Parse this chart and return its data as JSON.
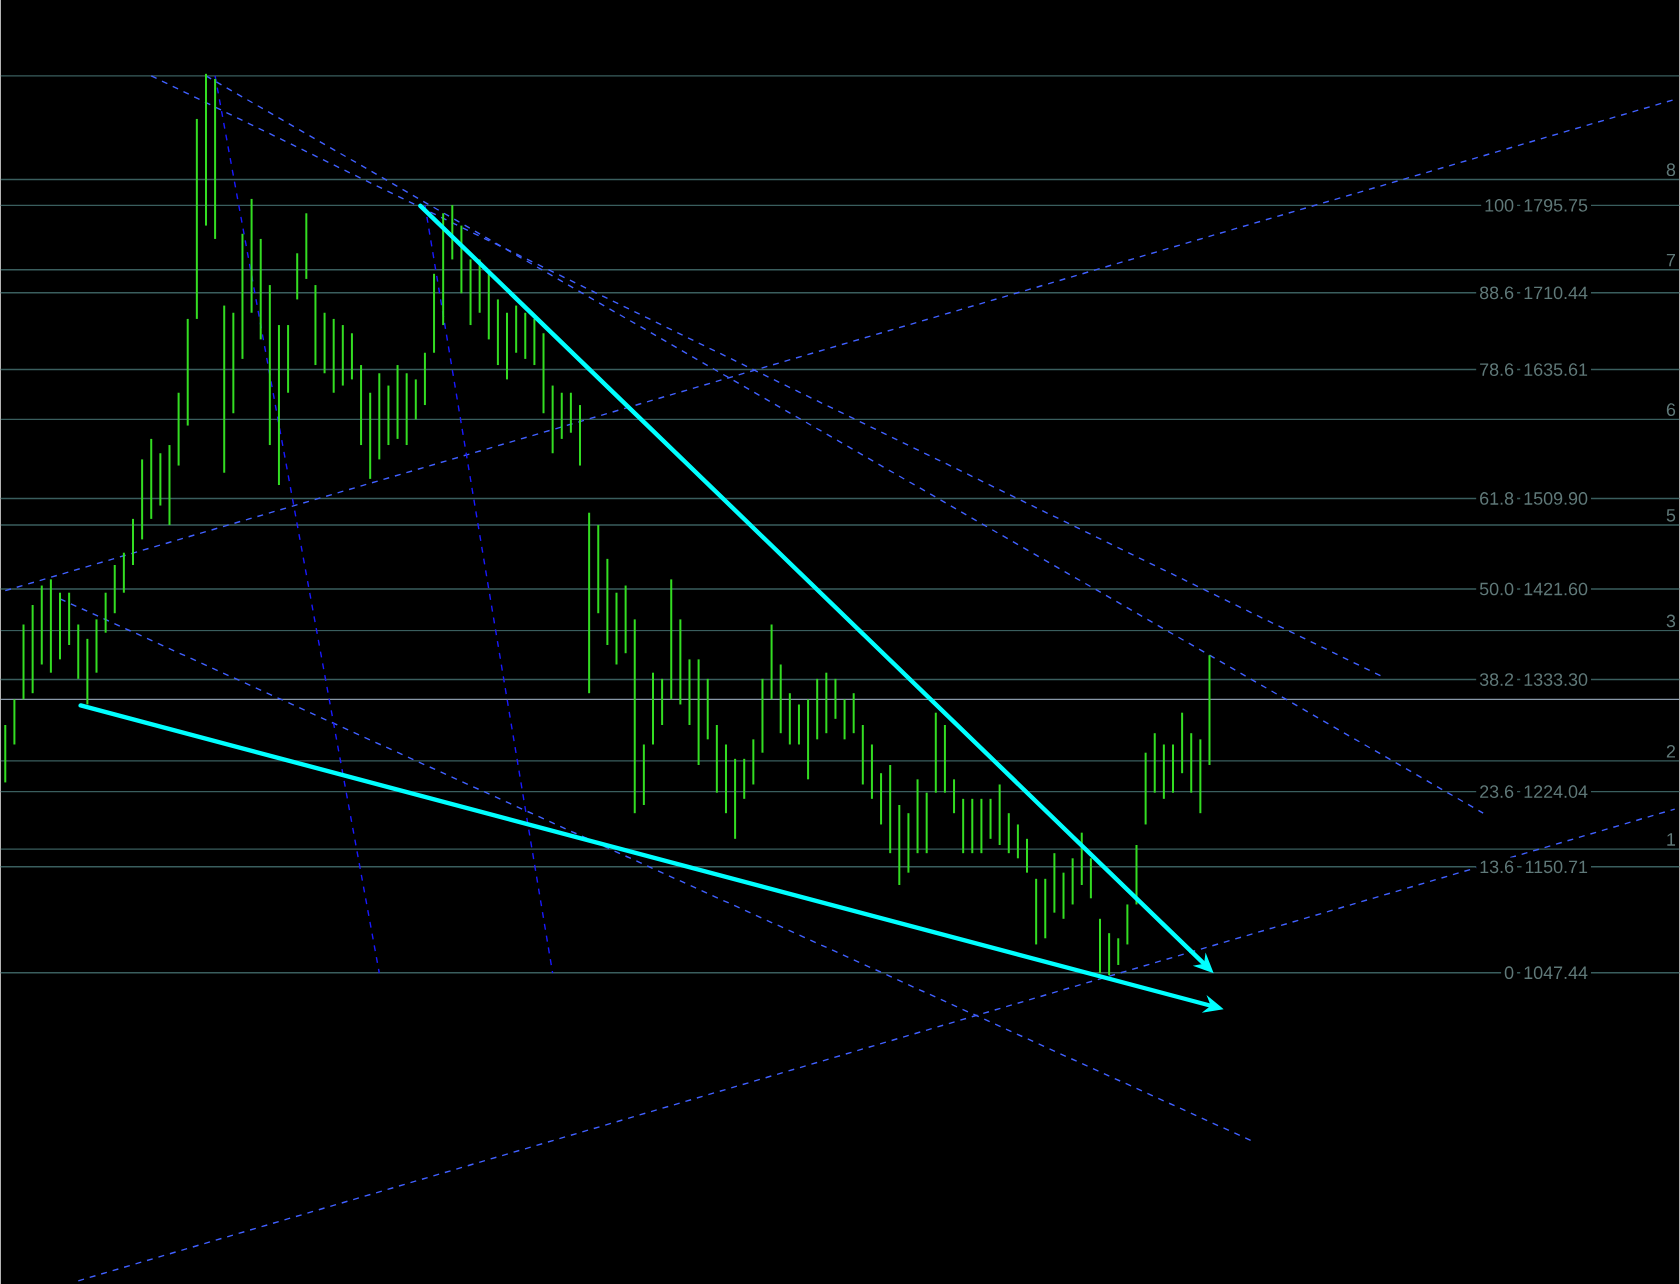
{
  "chart_data": {
    "type": "bar",
    "categories": [
      null,
      null,
      null,
      null,
      null,
      null,
      null,
      null,
      null,
      null,
      null,
      null,
      null,
      null,
      null,
      null,
      null,
      null,
      null,
      null,
      null,
      null,
      null,
      null,
      null,
      null,
      null,
      null,
      null,
      null,
      null,
      null,
      null,
      null,
      null,
      null,
      null,
      null,
      null,
      null,
      null,
      null,
      null,
      null,
      null,
      null,
      null,
      null,
      null,
      null,
      null,
      null,
      null,
      null,
      null,
      null,
      null,
      null,
      null,
      null,
      null,
      null,
      null,
      null,
      null,
      null,
      null,
      null,
      null,
      null,
      null,
      null,
      null,
      null,
      null,
      null,
      null,
      null,
      null,
      null,
      null,
      null,
      null,
      null,
      null,
      null,
      null,
      null,
      null,
      null,
      null,
      null,
      null,
      null,
      null,
      null,
      null,
      null,
      null,
      null,
      null,
      null,
      null,
      null,
      null,
      null,
      null,
      null,
      null,
      null,
      null,
      null,
      null,
      null,
      null,
      null,
      null,
      null,
      null,
      null,
      null,
      null,
      null,
      null,
      null,
      null,
      null,
      null,
      null,
      null,
      null,
      null,
      null,
      null,
      null,
      null,
      null,
      null,
      null,
      null,
      null,
      null,
      null,
      null,
      null,
      null,
      null,
      null,
      null,
      null,
      null,
      null,
      null,
      null,
      null,
      null,
      null,
      null,
      null,
      null,
      null,
      null,
      null,
      null,
      null,
      null,
      null,
      null,
      null,
      null,
      null,
      null,
      null,
      null,
      null,
      null,
      null,
      null,
      null,
      null,
      null,
      null,
      null,
      null
    ],
    "color": "#33dd22",
    "base": [
      1233,
      1270,
      1314,
      1320,
      1348,
      1340,
      1353,
      1367,
      1334,
      1309,
      1340,
      1379,
      1398,
      1418,
      1445,
      1470,
      1490,
      1503,
      1484,
      1542,
      1581,
      1685,
      1776,
      1763,
      1535,
      1593,
      1646,
      1691,
      1665,
      1562,
      1523,
      1613,
      1704,
      1724,
      1640,
      1632,
      1613,
      1620,
      1626,
      1562,
      1529,
      1548,
      1562,
      1568,
      1562,
      1587,
      1601,
      1652,
      1679,
      1743,
      1710,
      1679,
      1691,
      1665,
      1640,
      1626,
      1652,
      1646,
      1640,
      1593,
      1554,
      1568,
      1574,
      1542,
      1320,
      1398,
      1367,
      1348,
      1359,
      1203,
      1211,
      1270,
      1289,
      1314,
      1309,
      1289,
      1250,
      1275,
      1223,
      1203,
      1178,
      1217,
      1231,
      1262,
      1314,
      1281,
      1270,
      1270,
      1236,
      1275,
      1281,
      1295,
      1275,
      1281,
      1231,
      1217,
      1192,
      1164,
      1133,
      1145,
      1164,
      1164,
      1223,
      1223,
      1203,
      1164,
      1164,
      1164,
      1178,
      1172,
      1164,
      1159,
      1145,
      1075,
      1081,
      1106,
      1100,
      1114,
      1133,
      1120,
      1047,
      1045,
      1055,
      1075,
      1114,
      1192,
      1223,
      1217,
      1223,
      1242,
      1223,
      1203,
      1250,
      null,
      null,
      null,
      null,
      null,
      null,
      null,
      null,
      null,
      null,
      null,
      null,
      null,
      null,
      null,
      null,
      null,
      null,
      null,
      null,
      null,
      null,
      null,
      null,
      null,
      null,
      null,
      null,
      null,
      null,
      null,
      null,
      null,
      null,
      null,
      null,
      null,
      null,
      null,
      null,
      null,
      null,
      null,
      null,
      null,
      null,
      null,
      null,
      null,
      null,
      null
    ],
    "values": [
      56,
      44,
      73,
      86,
      77,
      91,
      65,
      51,
      53,
      64,
      52,
      39,
      47,
      39,
      45,
      78,
      78,
      51,
      78,
      71,
      104,
      195,
      148,
      156,
      163,
      98,
      122,
      111,
      98,
      156,
      156,
      66,
      45,
      64,
      78,
      59,
      72,
      59,
      45,
      78,
      84,
      84,
      58,
      72,
      70,
      39,
      51,
      77,
      109,
      53,
      66,
      64,
      52,
      64,
      64,
      65,
      46,
      45,
      45,
      78,
      66,
      45,
      39,
      59,
      176,
      86,
      84,
      70,
      66,
      189,
      59,
      70,
      45,
      117,
      83,
      64,
      103,
      59,
      66,
      67,
      78,
      39,
      44,
      72,
      73,
      67,
      50,
      39,
      78,
      59,
      59,
      39,
      39,
      39,
      58,
      53,
      50,
      86,
      78,
      58,
      72,
      59,
      78,
      66,
      33,
      53,
      53,
      53,
      39,
      59,
      39,
      33,
      33,
      64,
      58,
      58,
      45,
      45,
      51,
      39,
      53,
      41,
      26,
      39,
      58,
      70,
      58,
      53,
      47,
      59,
      58,
      72,
      107,
      null,
      null,
      null,
      null,
      null,
      null,
      null,
      null,
      null,
      null,
      null,
      null,
      null,
      null,
      null,
      null,
      null,
      null,
      null,
      null,
      null,
      null,
      null,
      null,
      null,
      null,
      null,
      null,
      null,
      null,
      null,
      null,
      null,
      null,
      null,
      null,
      null,
      null,
      null,
      null,
      null,
      null,
      null,
      null,
      null,
      null,
      null,
      null,
      null,
      null,
      null
    ],
    "series": [
      {
        "type": "line",
        "color": "#4060ff",
        "line_style": "dashed",
        "values": [
          null,
          null,
          null,
          null,
          null,
          null,
          null,
          null,
          null,
          null,
          null,
          null,
          null,
          null,
          null,
          null,
          1922,
          null,
          null,
          null,
          null,
          null,
          null,
          null,
          null,
          null,
          null,
          null,
          null,
          null,
          null,
          null,
          null,
          null,
          null,
          null,
          null,
          null,
          null,
          null,
          null,
          null,
          null,
          null,
          null,
          null,
          null,
          null,
          null,
          null,
          null,
          null,
          null,
          null,
          null,
          null,
          null,
          null,
          null,
          null,
          null,
          null,
          null,
          null,
          null,
          null,
          null,
          null,
          null,
          null,
          null,
          null,
          null,
          null,
          null,
          null,
          null,
          null,
          null,
          null,
          null,
          null,
          null,
          null,
          null,
          null,
          null,
          null,
          null,
          null,
          null,
          null,
          null,
          null,
          null,
          null,
          null,
          null,
          null,
          null,
          null,
          null,
          null,
          null,
          null,
          null,
          null,
          null,
          null,
          null,
          null,
          null,
          null,
          null,
          null,
          null,
          null,
          null,
          null,
          null,
          null,
          null,
          null,
          null,
          null,
          null,
          null,
          null,
          null,
          null,
          null,
          null,
          null,
          null,
          null,
          null,
          null,
          null,
          null,
          null,
          null,
          null,
          null,
          null,
          null,
          null,
          null,
          null,
          null,
          null,
          null,
          1336,
          null,
          null,
          null,
          null,
          null,
          null,
          null,
          null,
          null,
          null,
          null,
          null,
          null,
          null,
          null,
          null,
          null,
          null,
          null,
          null,
          null,
          null,
          null,
          null,
          null,
          null,
          null,
          null,
          null,
          null,
          null,
          null
        ]
      },
      {
        "type": "line",
        "color": "#4060ff",
        "line_style": "dashed",
        "values": [
          null,
          null,
          null,
          null,
          null,
          null,
          null,
          null,
          null,
          null,
          null,
          null,
          null,
          null,
          null,
          null,
          null,
          null,
          null,
          null,
          null,
          null,
          1922,
          null,
          null,
          null,
          null,
          null,
          null,
          null,
          null,
          null,
          null,
          null,
          null,
          null,
          null,
          null,
          null,
          null,
          null,
          null,
          null,
          null,
          null,
          null,
          null,
          null,
          null,
          null,
          null,
          null,
          null,
          null,
          null,
          null,
          null,
          null,
          null,
          null,
          null,
          null,
          null,
          null,
          null,
          null,
          null,
          null,
          null,
          null,
          null,
          null,
          null,
          null,
          null,
          null,
          null,
          null,
          null,
          null,
          null,
          null,
          null,
          null,
          null,
          null,
          null,
          null,
          null,
          null,
          null,
          null,
          null,
          null,
          null,
          null,
          null,
          null,
          null,
          null,
          null,
          null,
          null,
          null,
          null,
          null,
          null,
          null,
          null,
          null,
          null,
          null,
          null,
          null,
          null,
          null,
          null,
          null,
          null,
          null,
          null,
          null,
          null,
          null,
          null,
          null,
          null,
          null,
          null,
          null,
          null,
          null,
          null,
          null,
          null,
          null,
          null,
          null,
          null,
          null,
          null,
          null,
          null,
          null,
          null,
          null,
          null,
          null,
          null,
          null,
          null,
          null,
          null,
          null,
          null,
          null,
          null,
          null,
          null,
          null,
          null,
          null,
          1203,
          null,
          null,
          null,
          null,
          null,
          null,
          null,
          null,
          null,
          null,
          null,
          null,
          null,
          null,
          null,
          null,
          null,
          null,
          null,
          null,
          null
        ]
      },
      {
        "type": "line",
        "color": "#4060ff",
        "line_style": "dashed",
        "values": [
          1420,
          null,
          null,
          null,
          null,
          null,
          null,
          null,
          null,
          null,
          null,
          null,
          null,
          null,
          null,
          null,
          null,
          null,
          null,
          null,
          null,
          null,
          null,
          null,
          null,
          null,
          null,
          null,
          null,
          null,
          null,
          null,
          null,
          null,
          null,
          null,
          null,
          null,
          null,
          null,
          null,
          null,
          null,
          null,
          null,
          null,
          null,
          null,
          null,
          null,
          null,
          null,
          null,
          null,
          null,
          null,
          null,
          null,
          null,
          null,
          null,
          null,
          null,
          null,
          null,
          null,
          null,
          null,
          null,
          null,
          null,
          null,
          null,
          null,
          null,
          null,
          null,
          null,
          null,
          null,
          null,
          null,
          null,
          null,
          null,
          null,
          null,
          null,
          null,
          null,
          null,
          null,
          null,
          null,
          null,
          null,
          null,
          null,
          null,
          null,
          null,
          null,
          null,
          null,
          null,
          null,
          null,
          null,
          null,
          null,
          null,
          null,
          null,
          null,
          null,
          null,
          null,
          null,
          null,
          null,
          null,
          null,
          null,
          null,
          null,
          null,
          null,
          null,
          null,
          null,
          null,
          null,
          null,
          null,
          null,
          null,
          null,
          null,
          null,
          null,
          null,
          null,
          null,
          null,
          null,
          null,
          null,
          null,
          null,
          null,
          null,
          null,
          null,
          null,
          null,
          null,
          null,
          null,
          null,
          null,
          null,
          null,
          null,
          null,
          null,
          null,
          null,
          null,
          null,
          null,
          null,
          null,
          null,
          null,
          null,
          null,
          null,
          null,
          null,
          null,
          null,
          null,
          null,
          1899
        ]
      },
      {
        "type": "line",
        "color": "#4060ff",
        "line_style": "dashed",
        "values": [
          null,
          null,
          null,
          null,
          null,
          null,
          1412,
          null,
          null,
          null,
          null,
          null,
          null,
          null,
          null,
          null,
          null,
          null,
          null,
          null,
          null,
          null,
          null,
          null,
          null,
          null,
          null,
          null,
          null,
          null,
          null,
          null,
          null,
          null,
          null,
          null,
          null,
          null,
          null,
          null,
          null,
          null,
          null,
          null,
          null,
          null,
          null,
          null,
          null,
          null,
          null,
          null,
          null,
          null,
          null,
          null,
          null,
          null,
          null,
          null,
          null,
          null,
          null,
          null,
          null,
          null,
          null,
          null,
          null,
          null,
          null,
          null,
          null,
          null,
          null,
          null,
          null,
          null,
          null,
          null,
          null,
          null,
          null,
          null,
          null,
          null,
          null,
          null,
          null,
          null,
          null,
          null,
          null,
          null,
          null,
          null,
          null,
          null,
          null,
          null,
          null,
          null,
          null,
          null,
          null,
          null,
          null,
          null,
          null,
          null,
          null,
          null,
          null,
          null,
          null,
          null,
          null,
          null,
          null,
          null,
          null,
          null,
          null,
          null,
          null,
          null,
          null,
          null,
          null,
          null,
          null,
          null,
          null,
          null,
          null,
          null,
          null,
          882,
          null,
          null,
          null,
          null,
          null,
          null,
          null,
          null,
          null,
          null,
          null,
          null,
          null,
          null,
          null,
          null,
          null,
          null,
          null,
          null,
          null,
          null,
          null,
          null,
          null,
          null,
          null,
          null,
          null,
          null,
          null,
          null,
          null,
          null,
          null,
          null,
          null,
          null,
          null,
          null,
          null,
          null,
          null,
          null,
          null,
          null
        ]
      },
      {
        "type": "line",
        "color": "#4060ff",
        "line_style": "dashed",
        "values": [
          null,
          null,
          null,
          null,
          null,
          null,
          null,
          null,
          747,
          null,
          null,
          null,
          null,
          null,
          null,
          null,
          null,
          null,
          null,
          null,
          null,
          null,
          null,
          null,
          null,
          null,
          null,
          null,
          null,
          null,
          null,
          null,
          null,
          null,
          null,
          null,
          null,
          null,
          null,
          null,
          null,
          null,
          null,
          null,
          null,
          null,
          null,
          null,
          null,
          null,
          null,
          null,
          null,
          null,
          null,
          null,
          null,
          null,
          null,
          null,
          null,
          null,
          null,
          null,
          null,
          null,
          null,
          null,
          null,
          null,
          null,
          null,
          null,
          null,
          null,
          null,
          null,
          null,
          null,
          null,
          null,
          null,
          null,
          null,
          null,
          null,
          null,
          null,
          null,
          null,
          null,
          null,
          null,
          null,
          null,
          null,
          null,
          null,
          null,
          null,
          null,
          null,
          null,
          null,
          null,
          null,
          null,
          null,
          null,
          null,
          null,
          null,
          null,
          null,
          null,
          null,
          null,
          null,
          null,
          null,
          null,
          null,
          null,
          null,
          null,
          null,
          null,
          null,
          null,
          null,
          null,
          null,
          null,
          null,
          null,
          null,
          null,
          null,
          null,
          null,
          null,
          null,
          null,
          null,
          null,
          null,
          null,
          null,
          null,
          null,
          null,
          null,
          null,
          null,
          null,
          null,
          null,
          null,
          null,
          null,
          null,
          null,
          null,
          null,
          null,
          null,
          null,
          null,
          null,
          null,
          null,
          null,
          null,
          null,
          null,
          null,
          null,
          null,
          null,
          null,
          null,
          null,
          null,
          1207
        ]
      },
      {
        "type": "line",
        "color": "#1a1aff",
        "line_style": "dashed",
        "values": [
          null,
          null,
          null,
          null,
          null,
          null,
          null,
          null,
          null,
          null,
          null,
          null,
          null,
          null,
          null,
          null,
          null,
          null,
          null,
          null,
          null,
          null,
          null,
          1922,
          null,
          null,
          null,
          null,
          null,
          null,
          null,
          null,
          null,
          null,
          null,
          null,
          null,
          null,
          null,
          null,
          null,
          1047,
          null,
          null,
          null,
          null,
          null,
          null,
          null,
          null,
          null,
          null,
          null,
          null,
          null,
          null,
          null,
          null,
          null,
          null,
          null,
          null,
          null,
          null,
          null,
          null,
          null,
          null,
          null,
          null,
          null,
          null,
          null,
          null,
          null,
          null,
          null,
          null,
          null,
          null,
          null,
          null,
          null,
          null,
          null,
          null,
          null,
          null,
          null,
          null,
          null,
          null,
          null,
          null,
          null,
          null,
          null,
          null,
          null,
          null,
          null,
          null,
          null,
          null,
          null,
          null,
          null,
          null,
          null,
          null,
          null,
          null,
          null,
          null,
          null,
          null,
          null,
          null,
          null,
          null,
          null,
          null,
          null,
          null,
          null,
          null,
          null,
          null,
          null,
          null,
          null,
          null,
          null,
          null,
          null,
          null,
          null,
          null,
          null,
          null,
          null,
          null,
          null,
          null,
          null,
          null,
          null,
          null,
          null,
          null,
          null,
          null,
          null,
          null,
          null,
          null,
          null,
          null,
          null,
          null,
          null,
          null,
          null,
          null,
          null,
          null,
          null,
          null,
          null,
          null,
          null,
          null,
          null,
          null,
          null,
          null,
          null,
          null,
          null,
          null,
          null,
          null,
          null,
          null
        ]
      },
      {
        "type": "line",
        "color": "#1a1aff",
        "line_style": "dashed",
        "values": [
          null,
          null,
          null,
          null,
          null,
          null,
          null,
          null,
          null,
          null,
          null,
          null,
          null,
          null,
          null,
          null,
          null,
          null,
          null,
          null,
          null,
          null,
          null,
          null,
          null,
          null,
          null,
          null,
          null,
          null,
          null,
          null,
          null,
          null,
          null,
          null,
          null,
          null,
          null,
          null,
          null,
          null,
          null,
          null,
          null,
          null,
          1796,
          null,
          null,
          null,
          null,
          null,
          null,
          null,
          null,
          null,
          null,
          null,
          null,
          null,
          1047,
          null,
          null,
          null,
          null,
          null,
          null,
          null,
          null,
          null,
          null,
          null,
          null,
          null,
          null,
          null,
          null,
          null,
          null,
          null,
          null,
          null,
          null,
          null,
          null,
          null,
          null,
          null,
          null,
          null,
          null,
          null,
          null,
          null,
          null,
          null,
          null,
          null,
          null,
          null,
          null,
          null,
          null,
          null,
          null,
          null,
          null,
          null,
          null,
          null,
          null,
          null,
          null,
          null,
          null,
          null,
          null,
          null,
          null,
          null,
          null,
          null,
          null,
          null,
          null,
          null,
          null,
          null,
          null,
          null,
          null,
          null,
          null,
          null,
          null,
          null,
          null,
          null,
          null,
          null,
          null,
          null,
          null,
          null,
          null,
          null,
          null,
          null,
          null,
          null,
          null,
          null,
          null,
          null,
          null,
          null,
          null,
          null,
          null,
          null,
          null,
          null,
          null,
          null,
          null,
          null,
          null,
          null,
          null,
          null,
          null,
          null,
          null,
          null,
          null,
          null,
          null,
          null,
          null,
          null,
          null,
          null,
          null,
          null
        ]
      }
    ],
    "ref_lines": [
      {
        "axis": "y",
        "value": 1922,
        "color": "#3a5e5e"
      },
      {
        "axis": "y",
        "value": 1821,
        "color": "#3a5e5e"
      },
      {
        "axis": "y",
        "value": 1733,
        "color": "#3a5e5e"
      },
      {
        "axis": "y",
        "value": 1587,
        "color": "#3a5e5e"
      },
      {
        "axis": "y",
        "value": 1484,
        "color": "#3a5e5e"
      },
      {
        "axis": "y",
        "value": 1381,
        "color": "#3a5e5e"
      },
      {
        "axis": "y",
        "value": 1314,
        "color": "#8898a8"
      },
      {
        "axis": "y",
        "value": 1254,
        "color": "#3a5e5e"
      },
      {
        "axis": "y",
        "value": 1168,
        "color": "#3a5e5e"
      }
    ],
    "annotations": [
      {
        "text": "8",
        "y": 1821
      },
      {
        "text": "7",
        "y": 1733
      },
      {
        "text": "6",
        "y": 1587
      },
      {
        "text": "5",
        "y": 1484
      },
      {
        "text": "3",
        "y": 1381
      },
      {
        "text": "2",
        "y": 1254
      },
      {
        "text": "1",
        "y": 1168
      },
      "100",
      "88.6",
      "78.6",
      "61.8",
      "50.0",
      "38.2",
      "23.6",
      "13.6",
      "0"
    ],
    "ylim": [
      743,
      1996
    ],
    "yticks": [
      1795.75,
      1710.44,
      1635.61,
      {
        "value": 1509.9,
        "label": "1509.90"
      },
      {
        "value": 1421.6,
        "label": "1421.60"
      },
      {
        "value": 1333.3,
        "label": "1333.30"
      },
      1224.04,
      1150.71,
      1047.44
    ],
    "grid": "y",
    "tick_labels": "y",
    "marker": "none"
  }
}
